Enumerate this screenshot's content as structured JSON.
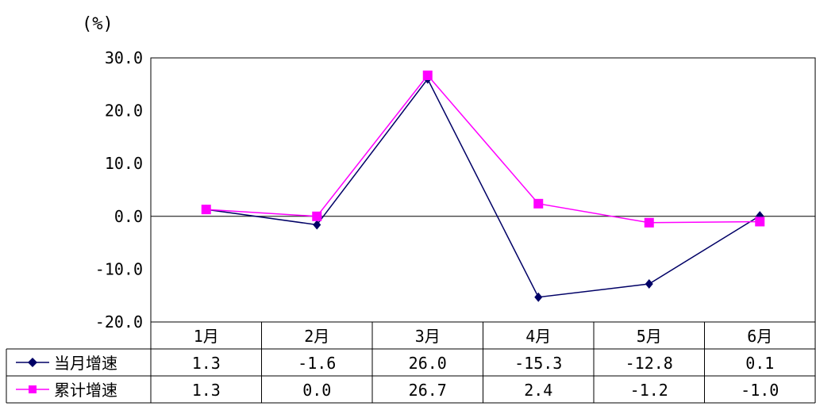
{
  "chart_data": {
    "type": "line",
    "unit_label": "(%)",
    "categories": [
      "1月",
      "2月",
      "3月",
      "4月",
      "5月",
      "6月"
    ],
    "y_ticks": [
      "30.0",
      "20.0",
      "10.0",
      "0.0",
      "-10.0",
      "-20.0"
    ],
    "y_tick_values": [
      30,
      20,
      10,
      0,
      -10,
      -20
    ],
    "ylim": [
      -20,
      30
    ],
    "grid": false,
    "legend": "data-table",
    "series": [
      {
        "name": "当月增速",
        "values": [
          1.3,
          -1.6,
          26.0,
          -15.3,
          -12.8,
          0.1
        ],
        "labels": [
          "1.3",
          "-1.6",
          "26.0",
          "-15.3",
          "-12.8",
          "0.1"
        ],
        "color": "#000066",
        "marker": "diamond"
      },
      {
        "name": "累计增速",
        "values": [
          1.3,
          0.0,
          26.7,
          2.4,
          -1.2,
          -1.0
        ],
        "labels": [
          "1.3",
          "0.0",
          "26.7",
          "2.4",
          "-1.2",
          "-1.0"
        ],
        "color": "#ff00ff",
        "marker": "square"
      }
    ]
  }
}
